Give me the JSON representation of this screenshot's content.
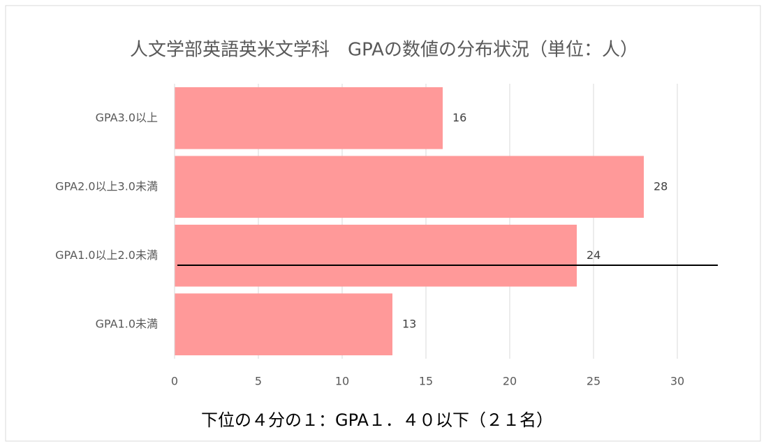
{
  "chart_data": {
    "type": "hbar",
    "title": "人文学部英語英米文学科　GPAの数値の分布状況（単位：人）",
    "categories": [
      "GPA3.0以上",
      "GPA2.0以上3.0未満",
      "GPA1.0以上2.0未満",
      "GPA1.0未満"
    ],
    "values": [
      16,
      28,
      24,
      13
    ],
    "color": "#ff9999",
    "xlim": [
      0,
      30
    ],
    "xticks": [
      0,
      5,
      10,
      15,
      20,
      25,
      30
    ],
    "grid": true,
    "xlabel": "下位の４分の１：GPA１．４０以下（２１名）"
  }
}
